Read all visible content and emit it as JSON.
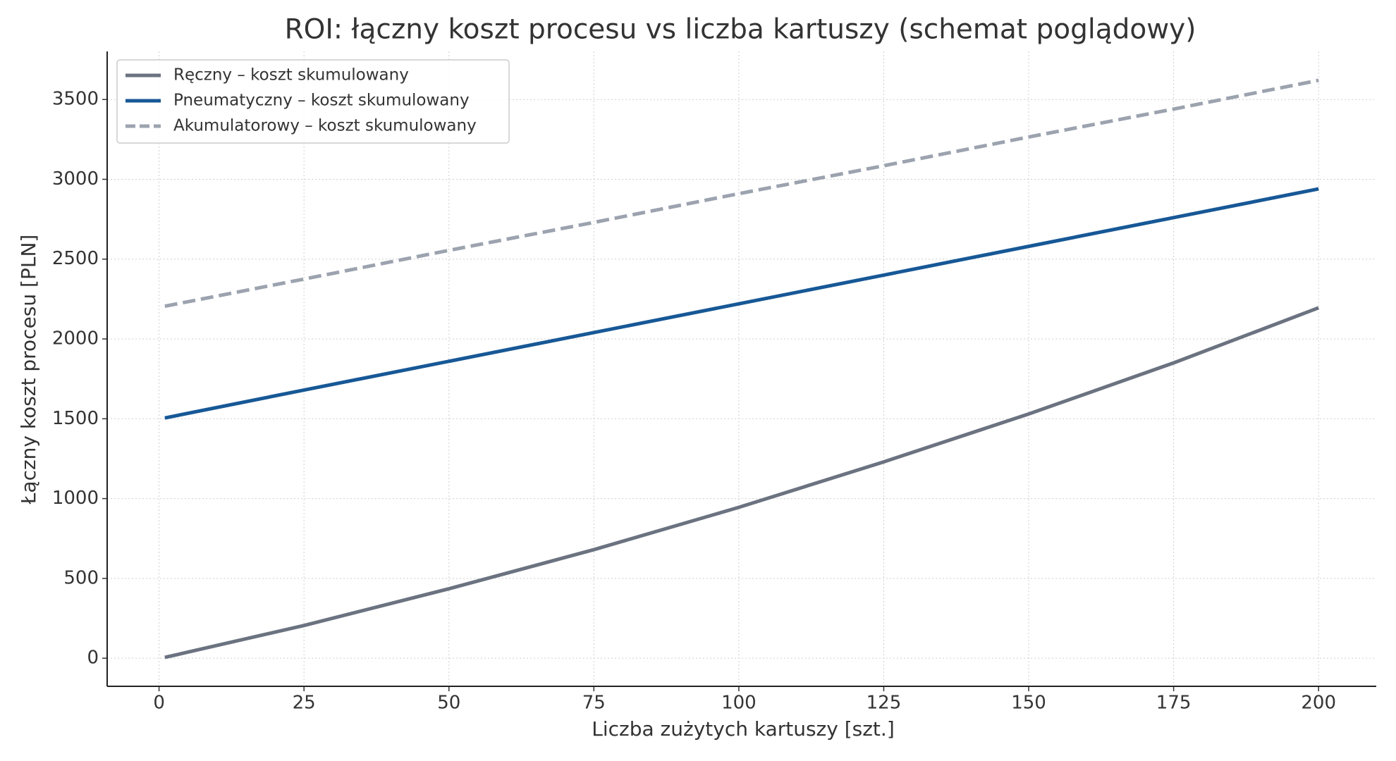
{
  "chart_data": {
    "type": "line",
    "title": "ROI: łączny koszt procesu vs liczba kartuszy (schemat poglądowy)",
    "x_label": "Liczba zużytych kartuszy [szt.]",
    "y_label": "Łączny koszt procesu [PLN]",
    "x": [
      1,
      25,
      50,
      75,
      100,
      125,
      150,
      175,
      200
    ],
    "series": [
      {
        "name": "Ręczny – koszt skumulowany",
        "color": "#6b7280",
        "dash": false,
        "values": [
          5,
          205,
          435,
          680,
          945,
          1230,
          1530,
          1850,
          2195
        ]
      },
      {
        "name": "Pneumatyczny – koszt skumulowany",
        "color": "#175896",
        "dash": false,
        "values": [
          1505,
          1680,
          1860,
          2040,
          2220,
          2400,
          2580,
          2760,
          2940
        ]
      },
      {
        "name": "Akumulatorowy – koszt skumulowany",
        "color": "#9ca3af",
        "dash": true,
        "values": [
          2205,
          2375,
          2555,
          2730,
          2910,
          3085,
          3265,
          3440,
          3620
        ]
      }
    ],
    "xlim": [
      -8.95,
      209.95
    ],
    "ylim": [
      -176,
      3801
    ],
    "xticks": [
      0,
      25,
      50,
      75,
      100,
      125,
      150,
      175,
      200
    ],
    "yticks": [
      0,
      500,
      1000,
      1500,
      2000,
      2500,
      3000,
      3500
    ],
    "grid": true,
    "legend": "upper-left"
  }
}
